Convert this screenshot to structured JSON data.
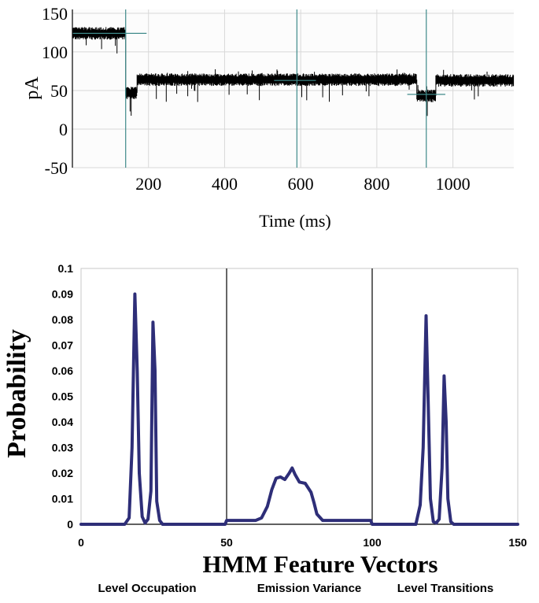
{
  "chart_data": [
    {
      "type": "line",
      "title": "",
      "xlabel": "Time (ms)",
      "ylabel": "pA",
      "xlim": [
        0,
        1160
      ],
      "ylim": [
        -50,
        155
      ],
      "x_ticks": [
        200,
        400,
        600,
        800,
        1000
      ],
      "y_ticks": [
        150,
        100,
        50,
        0,
        -50
      ],
      "grid": true,
      "series": [
        {
          "style": "noisy current trace",
          "color": "#000000",
          "segments": [
            {
              "x": [
                0,
                140
              ],
              "level": 124
            },
            {
              "x": [
                140,
                170
              ],
              "level": 47
            },
            {
              "x": [
                170,
                905
              ],
              "level": 64
            },
            {
              "x": [
                905,
                955
              ],
              "level": 43
            },
            {
              "x": [
                955,
                1160
              ],
              "level": 63
            }
          ]
        }
      ],
      "vertical_markers_x": [
        140,
        590,
        930
      ],
      "level_markers": [
        {
          "x": [
            0,
            195
          ],
          "y": 124
        },
        {
          "x": [
            530,
            640
          ],
          "y": 63
        },
        {
          "x": [
            880,
            980
          ],
          "y": 45
        }
      ],
      "marker_color": "#3f8a8a"
    },
    {
      "type": "line",
      "title": "",
      "xlabel": "HMM Feature Vectors",
      "ylabel": "Probability",
      "xlim": [
        0,
        150
      ],
      "ylim": [
        0,
        0.1
      ],
      "x_ticks": [
        "0",
        "50",
        "100",
        "150"
      ],
      "y_ticks": [
        "0",
        "0.01",
        "0.02",
        "0.03",
        "0.04",
        "0.05",
        "0.06",
        "0.07",
        "0.08",
        "0.09",
        "0.1"
      ],
      "grid": false,
      "dividers_x": [
        50,
        100
      ],
      "section_labels": [
        "Level Occupation",
        "Emission Variance",
        "Level Transitions"
      ],
      "series": [
        {
          "color": "#2e2e78",
          "x": [
            0,
            15,
            16.5,
            17.5,
            18.5,
            19.3,
            20,
            21,
            22,
            23,
            24,
            24.7,
            25.4,
            26,
            27,
            28,
            30,
            49.5,
            50,
            60,
            62,
            64,
            65.5,
            67,
            68.5,
            70,
            71.5,
            72.5,
            73.5,
            75,
            77,
            79,
            80,
            81,
            83,
            85,
            99.5,
            100,
            115,
            116.5,
            117.5,
            118.5,
            119.2,
            120,
            121,
            122,
            123,
            124,
            124.7,
            125.4,
            126,
            127,
            128,
            150
          ],
          "y": [
            0,
            0,
            0.0025,
            0.03,
            0.09,
            0.06,
            0.02,
            0.003,
            0.0005,
            0.002,
            0.013,
            0.079,
            0.06,
            0.009,
            0.0015,
            0,
            0,
            0,
            0.0015,
            0.0015,
            0.0025,
            0.007,
            0.0135,
            0.018,
            0.0185,
            0.0175,
            0.02,
            0.022,
            0.0195,
            0.0165,
            0.016,
            0.0125,
            0.0085,
            0.004,
            0.0015,
            0.0015,
            0.0015,
            0,
            0,
            0.0075,
            0.03,
            0.0815,
            0.05,
            0.01,
            0.001,
            0.0005,
            0.002,
            0.022,
            0.058,
            0.04,
            0.01,
            0.001,
            0,
            0
          ]
        }
      ]
    }
  ]
}
